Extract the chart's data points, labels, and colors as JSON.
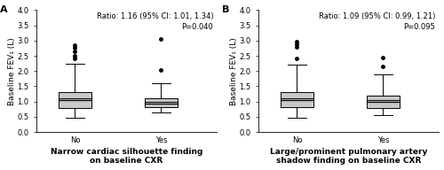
{
  "panel_A": {
    "label": "A",
    "annotation_line1": "Ratio: 1.16 (95% CI: 1.01, 1.34)",
    "annotation_line2": "P=0.040",
    "xlabel_line1": "Narrow cardiac silhouette finding",
    "xlabel_line2": "on baseline CXR",
    "categories": [
      "No",
      "Yes"
    ],
    "box_no": {
      "whisker_low": 0.47,
      "q1": 0.8,
      "median": 1.05,
      "mean": 1.1,
      "q3": 1.32,
      "whisker_high": 2.25,
      "outliers": [
        2.4,
        2.5,
        2.65,
        2.75,
        2.85
      ]
    },
    "box_yes": {
      "whisker_low": 0.65,
      "q1": 0.82,
      "median": 0.93,
      "mean": 0.98,
      "q3": 1.12,
      "whisker_high": 1.6,
      "outliers": [
        2.05,
        3.05
      ]
    }
  },
  "panel_B": {
    "label": "B",
    "annotation_line1": "Ratio: 1.09 (95% CI: 0.99, 1.21)",
    "annotation_line2": "P=0.095",
    "xlabel_line1": "Large/prominent pulmonary artery",
    "xlabel_line2": "shadow finding on baseline CXR",
    "categories": [
      "No",
      "Yes"
    ],
    "box_no": {
      "whisker_low": 0.47,
      "q1": 0.82,
      "median": 1.05,
      "mean": 1.1,
      "q3": 1.32,
      "whisker_high": 2.2,
      "outliers": [
        2.42,
        2.78,
        2.88,
        2.98
      ]
    },
    "box_yes": {
      "whisker_low": 0.55,
      "q1": 0.8,
      "median": 1.0,
      "mean": 1.05,
      "q3": 1.18,
      "whisker_high": 1.9,
      "outliers": [
        2.15,
        2.45
      ]
    }
  },
  "ylabel": "Baseline FEV₁ (L)",
  "ylim": [
    0.0,
    4.0
  ],
  "yticks": [
    0.0,
    0.5,
    1.0,
    1.5,
    2.0,
    2.5,
    3.0,
    3.5,
    4.0
  ],
  "box_color": "#c8c8c8",
  "box_width": 0.38,
  "linecolor": "black",
  "outlier_size": 2.5,
  "fontsize_tick": 6.0,
  "fontsize_label": 6.5,
  "fontsize_annot": 6.0,
  "fontsize_xlabel": 6.5,
  "fontsize_panel_label": 8
}
